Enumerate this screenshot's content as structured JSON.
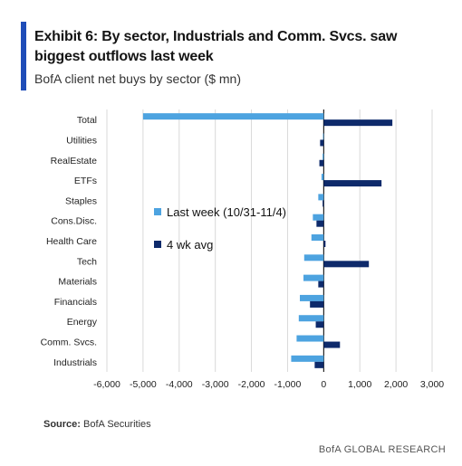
{
  "header": {
    "title": "Exhibit 6: By sector, Industrials and Comm. Svcs. saw biggest outflows last week",
    "subtitle": "BofA client net buys by sector ($ mn)"
  },
  "footer": {
    "source_label": "Source:",
    "source_text": "BofA Securities",
    "brand": "BofA GLOBAL RESEARCH"
  },
  "colors": {
    "accent": "#1f4db8",
    "last_week": "#4da3e0",
    "avg": "#0e2a6b",
    "grid": "#d9d9d9"
  },
  "chart_data": {
    "type": "bar",
    "orientation": "horizontal",
    "categories": [
      "Total",
      "Utilities",
      "RealEstate",
      "ETFs",
      "Staples",
      "Cons.Disc.",
      "Health Care",
      "Tech",
      "Materials",
      "Financials",
      "Energy",
      "Comm. Svcs.",
      "Industrials"
    ],
    "series": [
      {
        "name": "Last week (10/31-11/4)",
        "values": [
          -5000,
          -20,
          -30,
          -60,
          -150,
          -300,
          -340,
          -540,
          -560,
          -660,
          -690,
          -750,
          -900
        ]
      },
      {
        "name": "4 wk avg",
        "values": [
          1900,
          -100,
          -120,
          1600,
          -30,
          -200,
          50,
          1250,
          -150,
          -380,
          -220,
          450,
          -250
        ]
      }
    ],
    "xlim": [
      -6000,
      3000
    ],
    "xticks": [
      "-6,000",
      "-5,000",
      "-4,000",
      "-3,000",
      "-2,000",
      "-1,000",
      "0",
      "1,000",
      "2,000",
      "3,000"
    ],
    "xtick_values": [
      -6000,
      -5000,
      -4000,
      -3000,
      -2000,
      -1000,
      0,
      1000,
      2000,
      3000
    ],
    "grid": true,
    "legend_position": "center-left"
  }
}
